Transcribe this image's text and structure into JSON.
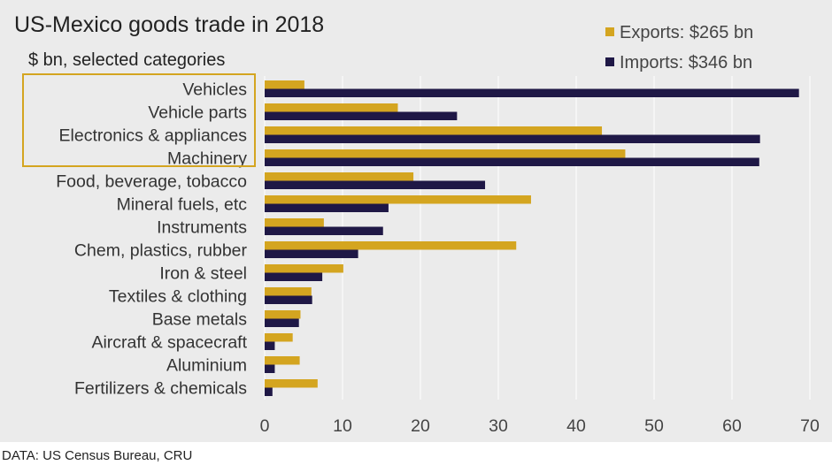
{
  "title": "US-Mexico goods trade in 2018",
  "subtitle": "$ bn, selected categories",
  "source": "DATA: US Census Bureau, CRU",
  "legend": {
    "exports_label": "Exports: $265 bn",
    "imports_label": "Imports: $346 bn"
  },
  "colors": {
    "background": "#ebebeb",
    "exports": "#d4a520",
    "imports": "#1f1846",
    "highlight_box": "#d4a520",
    "gridline": "#ffffff"
  },
  "chart_data": {
    "type": "bar",
    "orientation": "horizontal",
    "title": "US-Mexico goods trade in 2018",
    "subtitle": "$ bn, selected categories",
    "xlabel": "",
    "ylabel": "",
    "xlim": [
      0,
      70
    ],
    "xticks": [
      0,
      10,
      20,
      30,
      40,
      50,
      60,
      70
    ],
    "grid": "vertical",
    "legend_position": "top-right",
    "categories": [
      "Vehicles",
      "Vehicle parts",
      "Electronics & appliances",
      "Machinery",
      "Food, beverage, tobacco",
      "Mineral fuels, etc",
      "Instruments",
      "Chem, plastics, rubber",
      "Iron & steel",
      "Textiles & clothing",
      "Base metals",
      "Aircraft & spacecraft",
      "Aluminium",
      "Fertilizers & chemicals"
    ],
    "series": [
      {
        "name": "Exports",
        "values": [
          5.1,
          17.1,
          43.3,
          46.3,
          19.1,
          34.2,
          7.6,
          32.3,
          10.1,
          6.0,
          4.6,
          3.6,
          4.5,
          6.8
        ]
      },
      {
        "name": "Imports",
        "values": [
          68.6,
          24.7,
          63.6,
          63.5,
          28.3,
          15.9,
          15.2,
          12.0,
          7.4,
          6.1,
          4.4,
          1.3,
          1.3,
          1.0
        ]
      }
    ],
    "highlighted_categories": [
      "Vehicles",
      "Vehicle parts",
      "Electronics & appliances",
      "Machinery"
    ]
  }
}
